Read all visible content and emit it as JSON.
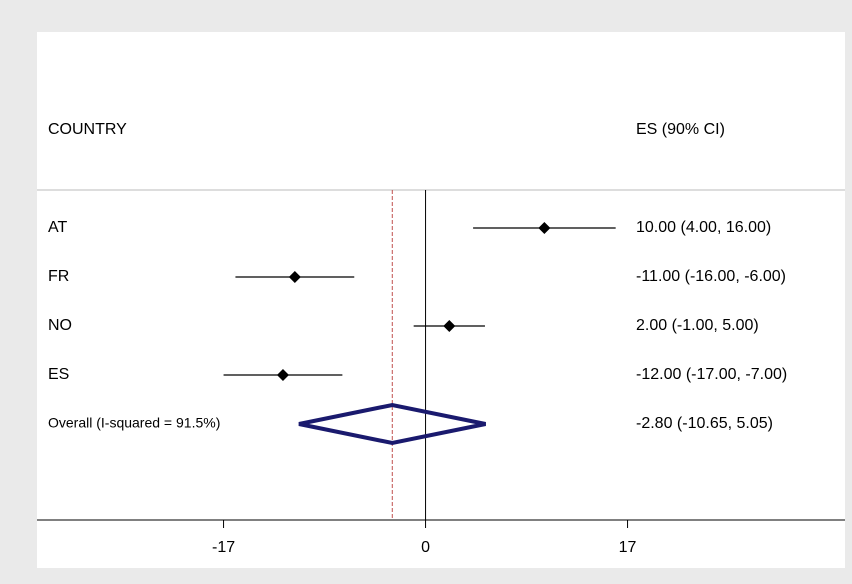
{
  "chart_data": {
    "type": "forest",
    "label_header": "COUNTRY",
    "value_header": "ES (90% CI)",
    "categories": [
      "AT",
      "FR",
      "NO",
      "ES"
    ],
    "values": [
      10,
      -11,
      2,
      -12
    ],
    "lower": [
      4,
      -16,
      -1,
      -17
    ],
    "upper": [
      16,
      -6,
      5,
      -7
    ],
    "value_labels": [
      "10.00 (4.00, 16.00)",
      "-11.00 (-16.00, -6.00)",
      "2.00 (-1.00, 5.00)",
      "-12.00 (-17.00, -7.00)"
    ],
    "overall": {
      "label": "Overall  (I-squared = 91.5%)",
      "value": -2.8,
      "lower": -10.65,
      "upper": 5.05,
      "value_label": "-2.80 (-10.65, 5.05)"
    },
    "xlim": [
      -32.7,
      35.3
    ],
    "xticks": [
      -17,
      0,
      17
    ],
    "marker_color": "#000000",
    "overall_color": "#1a1a6e",
    "reference_color": "#c0504d"
  }
}
